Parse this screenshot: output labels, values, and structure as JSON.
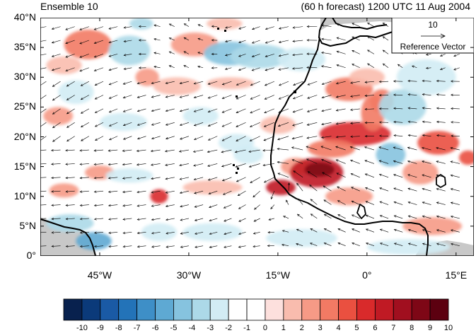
{
  "title_left": "Ensemble 10",
  "title_right": "(60 h forecast) 1200 UTC 11 Aug 2004",
  "reference_vector": {
    "magnitude": "10",
    "label": "Reference Vector"
  },
  "map": {
    "lon_range": [
      -55,
      18
    ],
    "lat_range": [
      0,
      40
    ],
    "lat_ticks": [
      {
        "value": 40,
        "label": "40°N"
      },
      {
        "value": 35,
        "label": "35°N"
      },
      {
        "value": 30,
        "label": "30°N"
      },
      {
        "value": 25,
        "label": "25°N"
      },
      {
        "value": 20,
        "label": "20°N"
      },
      {
        "value": 15,
        "label": "15°N"
      },
      {
        "value": 10,
        "label": "10°N"
      },
      {
        "value": 5,
        "label": "5°N"
      },
      {
        "value": 0,
        "label": "0°"
      }
    ],
    "lon_ticks": [
      {
        "value": -45,
        "label": "45°W"
      },
      {
        "value": -30,
        "label": "30°W"
      },
      {
        "value": -15,
        "label": "15°W"
      },
      {
        "value": 0,
        "label": "0°"
      },
      {
        "value": 15,
        "label": "15°E"
      }
    ]
  },
  "anomalies": [
    {
      "lon": -47,
      "lat": 35.5,
      "rx": 4,
      "ry": 2.5,
      "v": 4
    },
    {
      "lon": -51,
      "lat": 32,
      "rx": 3,
      "ry": 1.5,
      "v": 2
    },
    {
      "lon": -40,
      "lat": 34.5,
      "rx": 3.5,
      "ry": 2.5,
      "v": -3
    },
    {
      "lon": -29,
      "lat": 35.5,
      "rx": 4,
      "ry": 2,
      "v": 3
    },
    {
      "lon": -23,
      "lat": 34,
      "rx": 4.5,
      "ry": 2,
      "v": -4
    },
    {
      "lon": -18,
      "lat": 33.5,
      "rx": 5,
      "ry": 2,
      "v": -3
    },
    {
      "lon": -11,
      "lat": 33,
      "rx": 4,
      "ry": 2,
      "v": -2
    },
    {
      "lon": -37,
      "lat": 30,
      "rx": 2,
      "ry": 1.5,
      "v": 3
    },
    {
      "lon": -32,
      "lat": 28.5,
      "rx": 4,
      "ry": 1.5,
      "v": 2
    },
    {
      "lon": -23,
      "lat": 29,
      "rx": 4,
      "ry": 1,
      "v": 2
    },
    {
      "lon": -3,
      "lat": 28,
      "rx": 4,
      "ry": 2,
      "v": 4
    },
    {
      "lon": 0,
      "lat": 30,
      "rx": 3,
      "ry": 1.5,
      "v": 2
    },
    {
      "lon": -49,
      "lat": 27.5,
      "rx": 3,
      "ry": 2,
      "v": -2
    },
    {
      "lon": -52,
      "lat": 23.5,
      "rx": 2.5,
      "ry": 1.5,
      "v": 3
    },
    {
      "lon": -41,
      "lat": 22.5,
      "rx": 4,
      "ry": 1.5,
      "v": -2
    },
    {
      "lon": -28,
      "lat": 23.5,
      "rx": 3,
      "ry": 1.5,
      "v": -2
    },
    {
      "lon": -22,
      "lat": 19,
      "rx": 3,
      "ry": 1.5,
      "v": -2
    },
    {
      "lon": -2,
      "lat": 20.5,
      "rx": 6,
      "ry": 2,
      "v": 6
    },
    {
      "lon": 1,
      "lat": 24,
      "rx": 2,
      "ry": 3,
      "v": 4
    },
    {
      "lon": 2.5,
      "lat": 26,
      "rx": 2,
      "ry": 2,
      "v": 4
    },
    {
      "lon": -6,
      "lat": 18,
      "rx": 4,
      "ry": 1.5,
      "v": 4
    },
    {
      "lon": -12,
      "lat": 15,
      "rx": 2.5,
      "ry": 1.5,
      "v": 3
    },
    {
      "lon": -8.5,
      "lat": 14,
      "rx": 4.5,
      "ry": 2.5,
      "v": 7
    },
    {
      "lon": -8,
      "lat": 14.5,
      "rx": 2.5,
      "ry": 1.2,
      "v": 9
    },
    {
      "lon": -14.5,
      "lat": 11.5,
      "rx": 2.5,
      "ry": 1.3,
      "v": 7
    },
    {
      "lon": -3,
      "lat": 10,
      "rx": 4,
      "ry": 1.5,
      "v": 3
    },
    {
      "lon": 4,
      "lat": 17,
      "rx": 2.5,
      "ry": 2,
      "v": -4
    },
    {
      "lon": 6,
      "lat": 25,
      "rx": 4,
      "ry": 3,
      "v": -3
    },
    {
      "lon": 10,
      "lat": 30,
      "rx": 5,
      "ry": 3,
      "v": -2
    },
    {
      "lon": 12,
      "lat": 19,
      "rx": 3.5,
      "ry": 2,
      "v": 5
    },
    {
      "lon": 17,
      "lat": 16.5,
      "rx": 1.5,
      "ry": 1.2,
      "v": 5
    },
    {
      "lon": 9,
      "lat": 14,
      "rx": 3,
      "ry": 2,
      "v": 3
    },
    {
      "lon": 11,
      "lat": 5,
      "rx": 5,
      "ry": 1.5,
      "v": 3
    },
    {
      "lon": -45,
      "lat": 14,
      "rx": 2.5,
      "ry": 1.2,
      "v": 3
    },
    {
      "lon": -51,
      "lat": 11,
      "rx": 2.5,
      "ry": 1.2,
      "v": 3
    },
    {
      "lon": -35,
      "lat": 10,
      "rx": 1.5,
      "ry": 1.2,
      "v": 6
    },
    {
      "lon": -26,
      "lat": 11.5,
      "rx": 5,
      "ry": 1.2,
      "v": 2
    },
    {
      "lon": -40,
      "lat": 13.5,
      "rx": 4,
      "ry": 1.2,
      "v": -2
    },
    {
      "lon": -50,
      "lat": 5.5,
      "rx": 4,
      "ry": 1.5,
      "v": -3
    },
    {
      "lon": -46,
      "lat": 2.5,
      "rx": 3,
      "ry": 1.5,
      "v": -5
    },
    {
      "lon": -35,
      "lat": 4,
      "rx": 3,
      "ry": 1.5,
      "v": -2
    },
    {
      "lon": -26,
      "lat": 4,
      "rx": 5,
      "ry": 1.5,
      "v": -2
    },
    {
      "lon": -11,
      "lat": 3,
      "rx": 6,
      "ry": 1.5,
      "v": -2
    },
    {
      "lon": 7,
      "lat": 1.5,
      "rx": 7,
      "ry": 1.3,
      "v": -2
    },
    {
      "lon": -20,
      "lat": 17,
      "rx": 2.5,
      "ry": 1.5,
      "v": -2
    },
    {
      "lon": -15,
      "lat": 22,
      "rx": 3,
      "ry": 1.5,
      "v": 2
    },
    {
      "lon": -38,
      "lat": 39,
      "rx": 2,
      "ry": 1,
      "v": -3
    },
    {
      "lon": -24,
      "lat": 39,
      "rx": 3,
      "ry": 1,
      "v": 2
    }
  ],
  "colorbar": {
    "labels": [
      "-10",
      "-9",
      "-8",
      "-7",
      "-6",
      "-5",
      "-4",
      "-3",
      "-2",
      "-1",
      "0",
      "1",
      "2",
      "3",
      "4",
      "5",
      "6",
      "7",
      "8",
      "9",
      "10"
    ],
    "colors": [
      "#08214e",
      "#0b3a7a",
      "#1a5aa5",
      "#2373b8",
      "#3e8fc7",
      "#5ea9d3",
      "#86c3df",
      "#acd9e8",
      "#d2ecf4",
      "#ffffff",
      "#ffffff",
      "#fde0dd",
      "#f9bcae",
      "#f69a86",
      "#f27a64",
      "#ea5040",
      "#d92a2b",
      "#c01a24",
      "#a10f1f",
      "#7e0716",
      "#5c0010"
    ]
  },
  "colors": {
    "land_mask": "#c8c8c8",
    "coast": "#000000",
    "arrow": "#000000"
  }
}
